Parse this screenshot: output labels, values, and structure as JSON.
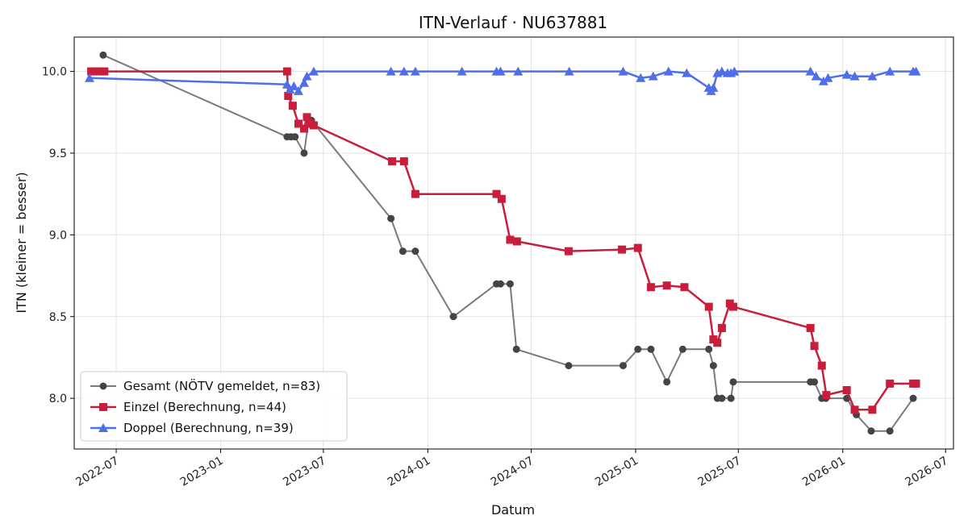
{
  "chart_data": {
    "type": "line",
    "title": "ITN-Verlauf · NU637881",
    "xlabel": "Datum",
    "ylabel": "ITN  (kleiner = besser)",
    "x_is_date": true,
    "xlim": [
      "2022-04-18",
      "2026-07-15"
    ],
    "ylim": [
      7.69,
      10.21
    ],
    "xticks": [
      "2022-07-01",
      "2023-01-01",
      "2023-07-01",
      "2024-01-01",
      "2024-07-01",
      "2025-01-01",
      "2025-07-01",
      "2026-01-01",
      "2026-07-01"
    ],
    "xtick_labels": [
      "2022-07",
      "2023-01",
      "2023-07",
      "2024-01",
      "2024-07",
      "2025-01",
      "2025-07",
      "2026-01",
      "2026-07"
    ],
    "yticks": [
      8.0,
      8.5,
      9.0,
      9.5,
      10.0
    ],
    "ytick_labels": [
      "8.0",
      "8.5",
      "9.0",
      "9.5",
      "10.0"
    ],
    "grid": true,
    "legend_position": "lower-left",
    "series": [
      {
        "name": "Gesamt (NÖTV gemeldet, n=83)",
        "color": "#444444",
        "line_color": "#7a7a7a",
        "marker": "circle",
        "points": [
          [
            "2022-06-08",
            10.1
          ],
          [
            "2023-04-28",
            9.6
          ],
          [
            "2023-05-05",
            9.6
          ],
          [
            "2023-05-12",
            9.6
          ],
          [
            "2023-05-28",
            9.5
          ],
          [
            "2023-06-05",
            9.7
          ],
          [
            "2023-06-10",
            9.7
          ],
          [
            "2023-10-28",
            9.1
          ],
          [
            "2023-11-18",
            8.9
          ],
          [
            "2023-12-10",
            8.9
          ],
          [
            "2024-02-15",
            8.5
          ],
          [
            "2024-05-01",
            8.7
          ],
          [
            "2024-05-08",
            8.7
          ],
          [
            "2024-05-25",
            8.7
          ],
          [
            "2024-06-05",
            8.3
          ],
          [
            "2024-09-05",
            8.2
          ],
          [
            "2024-12-10",
            8.2
          ],
          [
            "2025-01-05",
            8.3
          ],
          [
            "2025-01-28",
            8.3
          ],
          [
            "2025-02-25",
            8.1
          ],
          [
            "2025-03-25",
            8.3
          ],
          [
            "2025-05-10",
            8.3
          ],
          [
            "2025-05-18",
            8.2
          ],
          [
            "2025-05-25",
            8.0
          ],
          [
            "2025-06-02",
            8.0
          ],
          [
            "2025-06-18",
            8.0
          ],
          [
            "2025-06-22",
            8.1
          ],
          [
            "2025-11-05",
            8.1
          ],
          [
            "2025-11-12",
            8.1
          ],
          [
            "2025-11-25",
            8.0
          ],
          [
            "2025-12-02",
            8.0
          ],
          [
            "2026-01-08",
            8.0
          ],
          [
            "2026-01-25",
            7.9
          ],
          [
            "2026-02-20",
            7.8
          ],
          [
            "2026-03-25",
            7.8
          ],
          [
            "2026-05-05",
            8.0
          ]
        ]
      },
      {
        "name": "Einzel (Berechnung, n=44)",
        "color": "#c81e3c",
        "line_color": "#c81e3c",
        "marker": "square",
        "points": [
          [
            "2022-05-18",
            10.0
          ],
          [
            "2022-05-28",
            10.0
          ],
          [
            "2022-06-10",
            10.0
          ],
          [
            "2023-04-28",
            10.0
          ],
          [
            "2023-04-30",
            9.85
          ],
          [
            "2023-05-08",
            9.79
          ],
          [
            "2023-05-18",
            9.68
          ],
          [
            "2023-05-28",
            9.65
          ],
          [
            "2023-06-02",
            9.72
          ],
          [
            "2023-06-08",
            9.68
          ],
          [
            "2023-06-14",
            9.67
          ],
          [
            "2023-10-30",
            9.45
          ],
          [
            "2023-11-20",
            9.45
          ],
          [
            "2023-12-10",
            9.25
          ],
          [
            "2024-05-01",
            9.25
          ],
          [
            "2024-05-10",
            9.22
          ],
          [
            "2024-05-25",
            8.97
          ],
          [
            "2024-06-06",
            8.96
          ],
          [
            "2024-09-05",
            8.9
          ],
          [
            "2024-12-08",
            8.91
          ],
          [
            "2025-01-05",
            8.92
          ],
          [
            "2025-01-28",
            8.68
          ],
          [
            "2025-02-25",
            8.69
          ],
          [
            "2025-03-28",
            8.68
          ],
          [
            "2025-05-10",
            8.56
          ],
          [
            "2025-05-18",
            8.36
          ],
          [
            "2025-05-25",
            8.34
          ],
          [
            "2025-06-02",
            8.43
          ],
          [
            "2025-06-16",
            8.58
          ],
          [
            "2025-06-22",
            8.56
          ],
          [
            "2025-11-05",
            8.43
          ],
          [
            "2025-11-12",
            8.32
          ],
          [
            "2025-11-25",
            8.2
          ],
          [
            "2025-12-03",
            8.02
          ],
          [
            "2026-01-08",
            8.05
          ],
          [
            "2026-01-22",
            7.93
          ],
          [
            "2026-02-22",
            7.93
          ],
          [
            "2026-03-25",
            8.09
          ],
          [
            "2026-05-05",
            8.09
          ],
          [
            "2026-05-10",
            8.09
          ]
        ]
      },
      {
        "name": "Doppel (Berechnung, n=39)",
        "color": "#4f6fe8",
        "line_color": "#4f6fe8",
        "marker": "triangle",
        "points": [
          [
            "2022-05-15",
            9.96
          ],
          [
            "2023-04-28",
            9.92
          ],
          [
            "2023-05-03",
            9.89
          ],
          [
            "2023-05-10",
            9.91
          ],
          [
            "2023-05-18",
            9.88
          ],
          [
            "2023-05-28",
            9.93
          ],
          [
            "2023-06-02",
            9.97
          ],
          [
            "2023-06-14",
            10.0
          ],
          [
            "2023-10-28",
            10.0
          ],
          [
            "2023-11-20",
            10.0
          ],
          [
            "2023-12-10",
            10.0
          ],
          [
            "2024-03-01",
            10.0
          ],
          [
            "2024-05-01",
            10.0
          ],
          [
            "2024-05-08",
            10.0
          ],
          [
            "2024-06-08",
            10.0
          ],
          [
            "2024-09-06",
            10.0
          ],
          [
            "2024-12-10",
            10.0
          ],
          [
            "2025-01-10",
            9.96
          ],
          [
            "2025-02-01",
            9.97
          ],
          [
            "2025-02-28",
            10.0
          ],
          [
            "2025-04-01",
            9.99
          ],
          [
            "2025-05-10",
            9.9
          ],
          [
            "2025-05-14",
            9.88
          ],
          [
            "2025-05-18",
            9.9
          ],
          [
            "2025-05-25",
            9.99
          ],
          [
            "2025-06-02",
            10.0
          ],
          [
            "2025-06-12",
            9.99
          ],
          [
            "2025-06-18",
            9.99
          ],
          [
            "2025-06-24",
            10.0
          ],
          [
            "2025-11-05",
            10.0
          ],
          [
            "2025-11-15",
            9.97
          ],
          [
            "2025-11-28",
            9.94
          ],
          [
            "2025-12-06",
            9.96
          ],
          [
            "2026-01-08",
            9.98
          ],
          [
            "2026-01-22",
            9.97
          ],
          [
            "2026-02-22",
            9.97
          ],
          [
            "2026-03-25",
            10.0
          ],
          [
            "2026-05-05",
            10.0
          ],
          [
            "2026-05-10",
            10.0
          ]
        ]
      }
    ]
  }
}
